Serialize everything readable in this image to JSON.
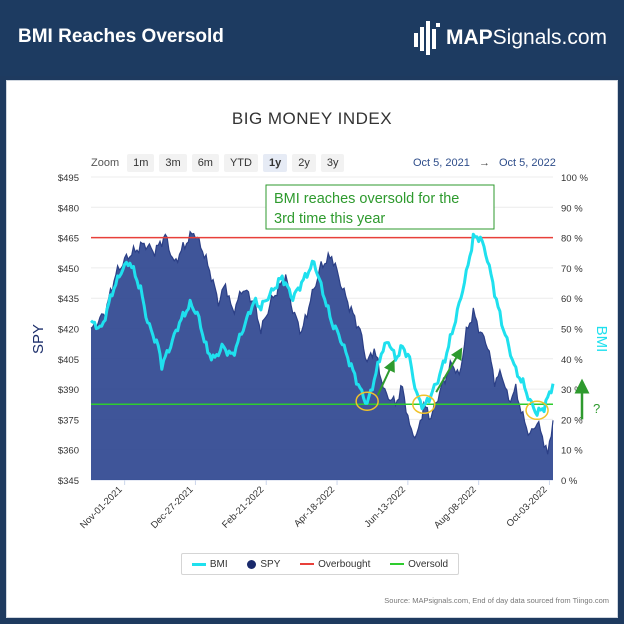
{
  "banner": {
    "title": "BMI Reaches Oversold",
    "logo_bold": "MAP",
    "logo_rest": "Signals.com",
    "logo_icon": "mapsignals-bars-logo"
  },
  "chart": {
    "title": "BIG MONEY INDEX",
    "zoom_label": "Zoom",
    "zoom_buttons": [
      "1m",
      "3m",
      "6m",
      "YTD",
      "1y",
      "2y",
      "3y"
    ],
    "zoom_active": "1y",
    "range_start": "Oct 5, 2021",
    "range_arrow": "→",
    "range_end": "Oct 5, 2022",
    "annotation_line1": "BMI reaches oversold for the",
    "annotation_line2": "3rd time this year",
    "question_mark": "?",
    "source": "Source: MAPsignals.com, End of day data sourced from Tiingo.com",
    "legend": {
      "bmi": "BMI",
      "spy": "SPY",
      "overbought": "Overbought",
      "oversold": "Oversold"
    }
  },
  "chart_data": {
    "type": "area",
    "title": "BIG MONEY INDEX",
    "ylabel_left": "SPY",
    "ylabel_right": "BMI",
    "left_axis": {
      "ticks": [
        "$345",
        "$360",
        "$375",
        "$390",
        "$405",
        "$420",
        "$435",
        "$450",
        "$465",
        "$480",
        "$495"
      ],
      "ylim": [
        345,
        495
      ]
    },
    "right_axis": {
      "ticks": [
        "0 %",
        "10 %",
        "20 %",
        "30 %",
        "40 %",
        "50 %",
        "60 %",
        "70 %",
        "80 %",
        "90 %",
        "100 %"
      ],
      "ylim": [
        0,
        100
      ]
    },
    "x_ticks": [
      "Nov-01-2021",
      "Dec-27-2021",
      "Feb-21-2022",
      "Apr-18-2022",
      "Jun-13-2022",
      "Aug-08-2022",
      "Oct-03-2022"
    ],
    "x_tick_index": [
      19,
      59,
      99,
      139,
      179,
      219,
      259
    ],
    "x_count": 262,
    "overbought_level": 80,
    "oversold_level": 25,
    "colors": {
      "spy": "#2b3f86",
      "spy_fill": "#2f4790",
      "bmi": "#1fe0ee",
      "overbought": "#e8403a",
      "oversold": "#2ecc2e",
      "annotation": "#2e9a2e",
      "circle": "#f0c22a"
    },
    "series": [
      {
        "name": "SPY",
        "knots": [
          [
            0,
            419
          ],
          [
            8,
            428
          ],
          [
            14,
            447
          ],
          [
            20,
            455
          ],
          [
            30,
            462
          ],
          [
            36,
            458
          ],
          [
            42,
            466
          ],
          [
            47,
            452
          ],
          [
            52,
            460
          ],
          [
            58,
            468
          ],
          [
            63,
            459
          ],
          [
            68,
            446
          ],
          [
            72,
            433
          ],
          [
            76,
            442
          ],
          [
            80,
            428
          ],
          [
            86,
            440
          ],
          [
            92,
            433
          ],
          [
            96,
            419
          ],
          [
            102,
            434
          ],
          [
            110,
            446
          ],
          [
            114,
            429
          ],
          [
            119,
            418
          ],
          [
            124,
            434
          ],
          [
            130,
            451
          ],
          [
            136,
            456
          ],
          [
            142,
            440
          ],
          [
            146,
            431
          ],
          [
            152,
            419
          ],
          [
            156,
            403
          ],
          [
            160,
            410
          ],
          [
            166,
            388
          ],
          [
            172,
            383
          ],
          [
            176,
            391
          ],
          [
            180,
            371
          ],
          [
            184,
            366
          ],
          [
            188,
            382
          ],
          [
            192,
            376
          ],
          [
            198,
            391
          ],
          [
            204,
            403
          ],
          [
            208,
            396
          ],
          [
            212,
            418
          ],
          [
            216,
            428
          ],
          [
            220,
            418
          ],
          [
            224,
            412
          ],
          [
            228,
            394
          ],
          [
            232,
            398
          ],
          [
            236,
            384
          ],
          [
            240,
            390
          ],
          [
            244,
            376
          ],
          [
            248,
            367
          ],
          [
            252,
            374
          ],
          [
            256,
            364
          ],
          [
            258,
            357
          ],
          [
            261,
            375
          ]
        ],
        "wiggle": 3
      },
      {
        "name": "BMI",
        "knots": [
          [
            0,
            52
          ],
          [
            6,
            50
          ],
          [
            12,
            62
          ],
          [
            18,
            70
          ],
          [
            22,
            72
          ],
          [
            28,
            63
          ],
          [
            32,
            52
          ],
          [
            38,
            44
          ],
          [
            40,
            38
          ],
          [
            44,
            43
          ],
          [
            50,
            52
          ],
          [
            56,
            58
          ],
          [
            60,
            55
          ],
          [
            66,
            42
          ],
          [
            70,
            40
          ],
          [
            74,
            44
          ],
          [
            80,
            41
          ],
          [
            86,
            50
          ],
          [
            92,
            59
          ],
          [
            96,
            57
          ],
          [
            102,
            62
          ],
          [
            108,
            67
          ],
          [
            114,
            60
          ],
          [
            120,
            66
          ],
          [
            124,
            70
          ],
          [
            126,
            72
          ],
          [
            132,
            60
          ],
          [
            136,
            52
          ],
          [
            140,
            48
          ],
          [
            144,
            42
          ],
          [
            148,
            36
          ],
          [
            152,
            30
          ],
          [
            156,
            25
          ],
          [
            160,
            33
          ],
          [
            164,
            42
          ],
          [
            168,
            46
          ],
          [
            172,
            40
          ],
          [
            176,
            44
          ],
          [
            180,
            40
          ],
          [
            184,
            28
          ],
          [
            188,
            24
          ],
          [
            192,
            28
          ],
          [
            196,
            33
          ],
          [
            200,
            40
          ],
          [
            206,
            53
          ],
          [
            212,
            68
          ],
          [
            216,
            80
          ],
          [
            220,
            80
          ],
          [
            224,
            73
          ],
          [
            228,
            62
          ],
          [
            232,
            52
          ],
          [
            236,
            44
          ],
          [
            240,
            36
          ],
          [
            244,
            32
          ],
          [
            248,
            26
          ],
          [
            252,
            22
          ],
          [
            256,
            24
          ],
          [
            260,
            30
          ],
          [
            261,
            32
          ]
        ],
        "wiggle": 1.5
      }
    ]
  }
}
